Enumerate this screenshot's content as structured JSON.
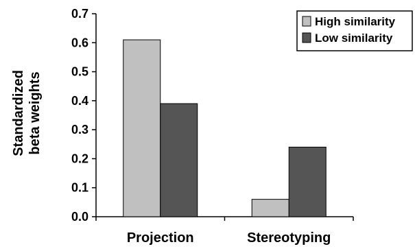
{
  "chart_data": {
    "type": "bar",
    "categories": [
      "Projection",
      "Stereotyping"
    ],
    "series": [
      {
        "name": "High similarity",
        "values": [
          0.61,
          0.06
        ],
        "color": "#c0c0c0"
      },
      {
        "name": "Low similarity",
        "values": [
          0.39,
          0.24
        ],
        "color": "#555555"
      }
    ],
    "ylabel_lines": [
      "Standardized",
      "beta weights"
    ],
    "xlabel": "",
    "title": "",
    "ylim": [
      0,
      0.7
    ],
    "yticks": [
      "0.0",
      "0.1",
      "0.2",
      "0.3",
      "0.4",
      "0.5",
      "0.6",
      "0.7"
    ],
    "grid": false,
    "legend_position": "top-right"
  }
}
